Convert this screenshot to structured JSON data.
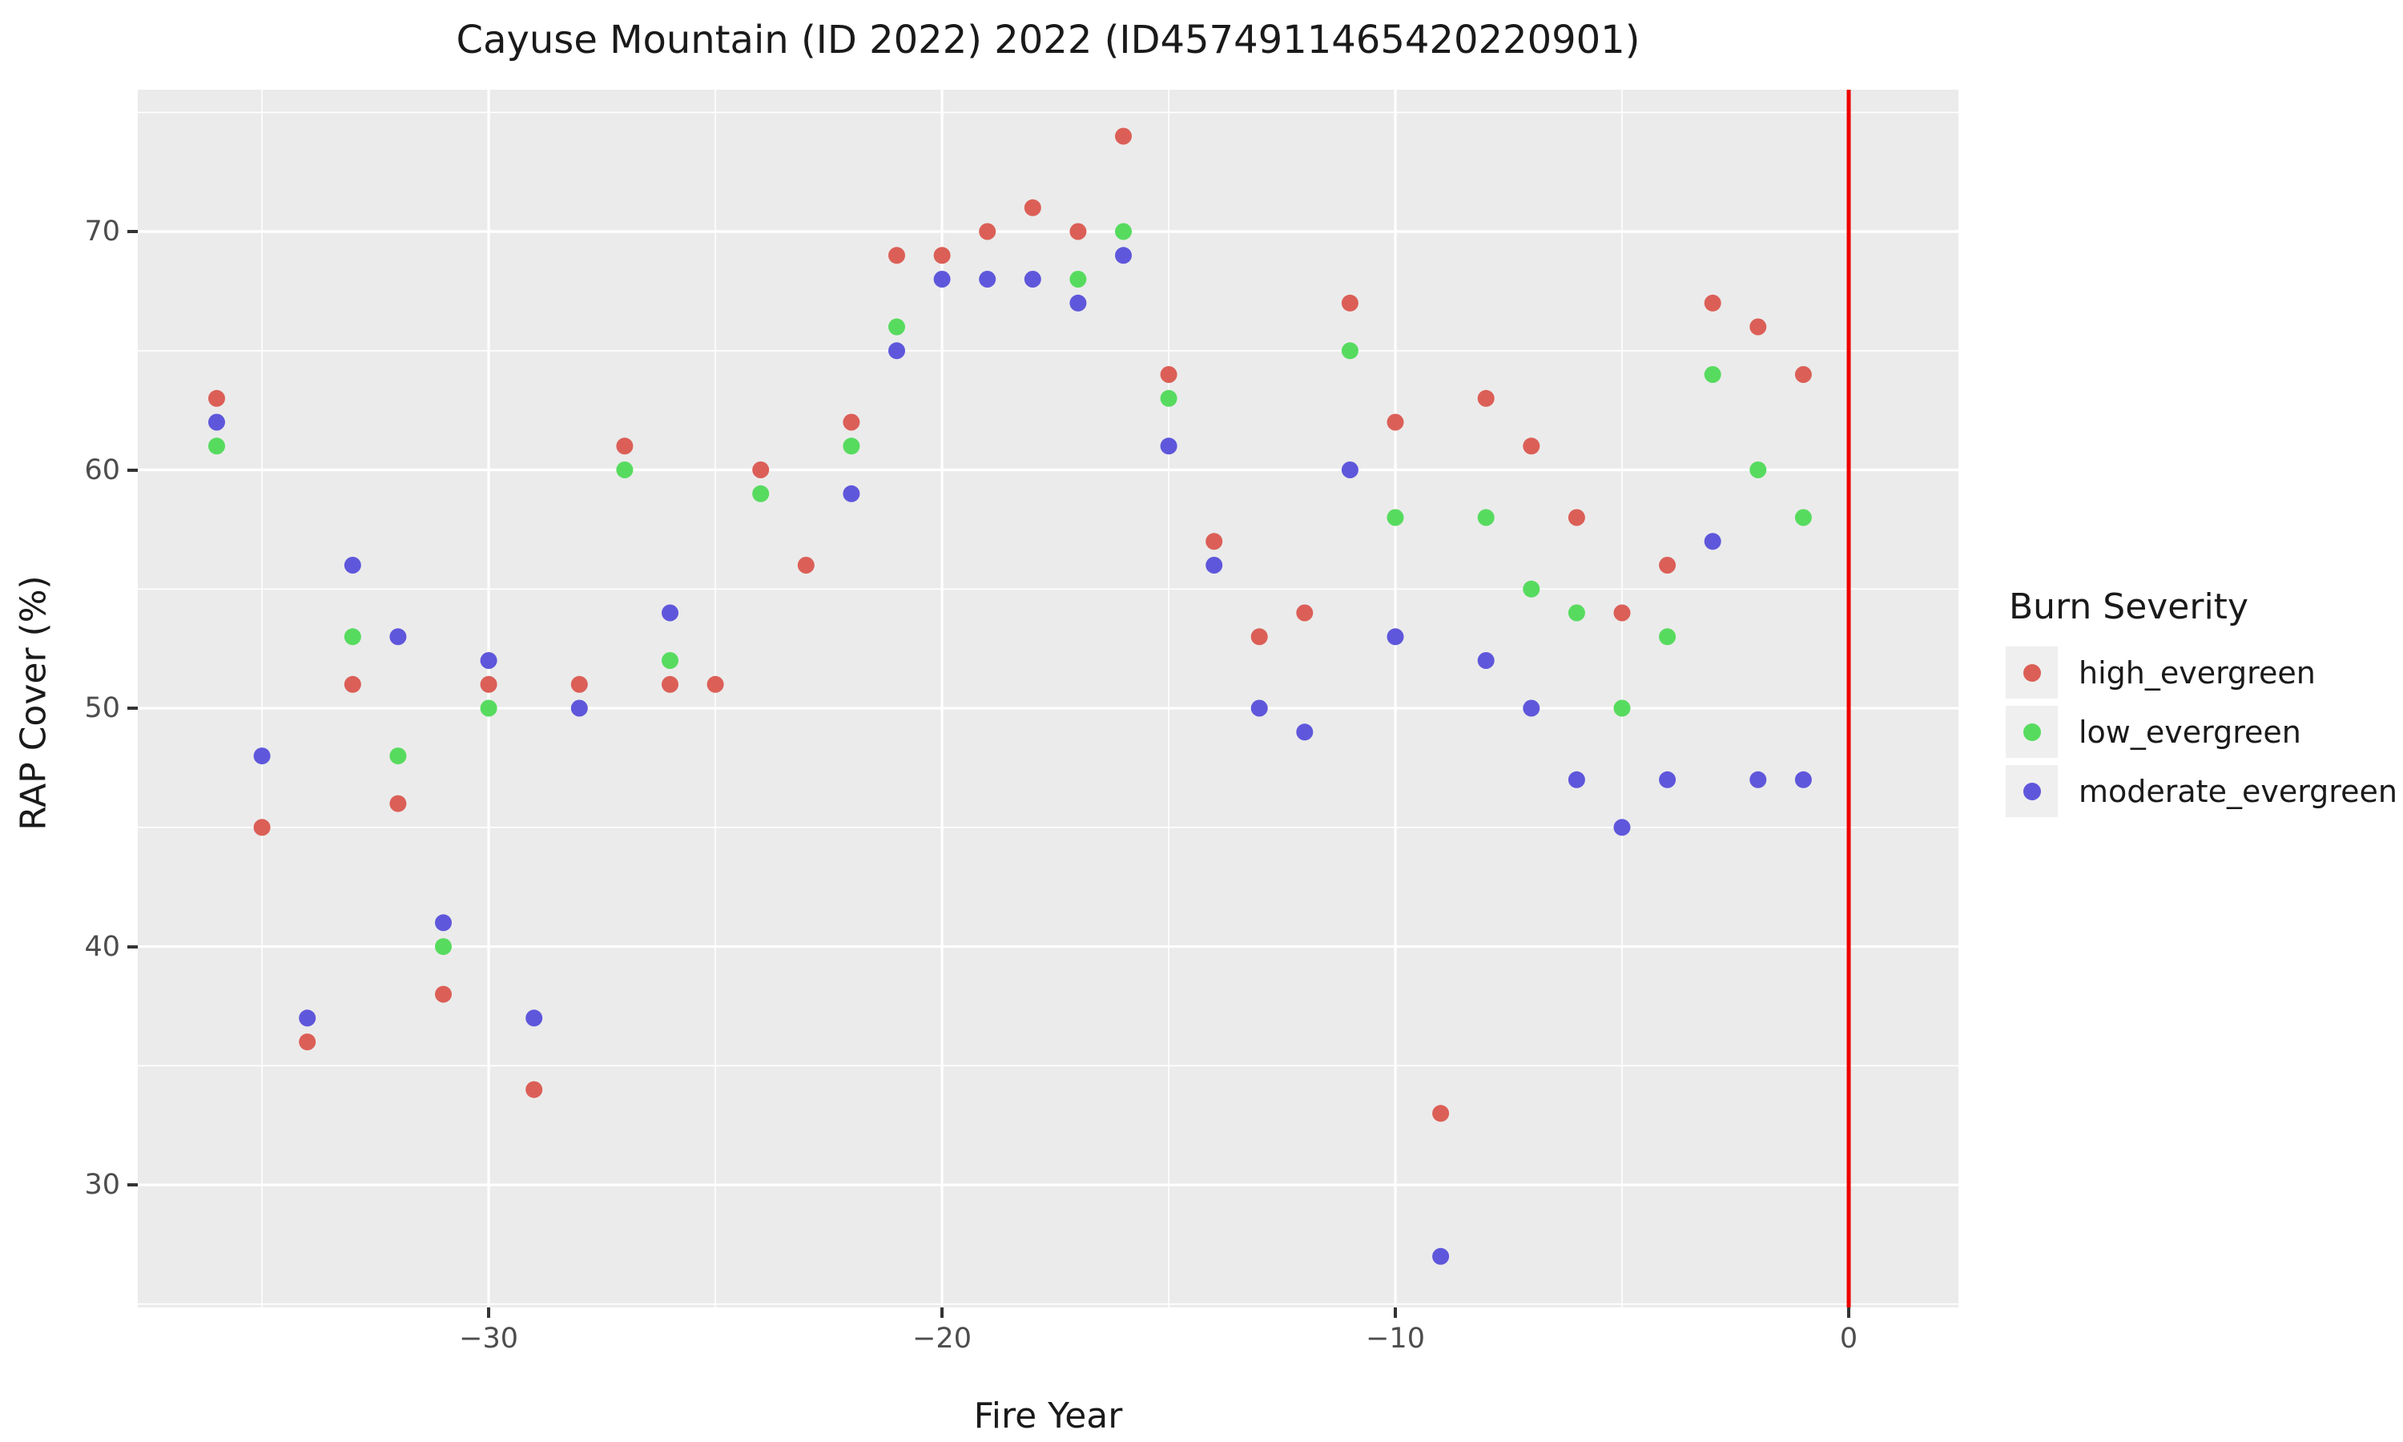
{
  "figure": {
    "background": "#ffffff",
    "panel_background": "#EBEBEB",
    "grid_color": "#ffffff",
    "tick_mark_color": "#333333",
    "tick_label_color": "#4d4d4d",
    "text_color": "#1a1a1a",
    "legend_key_background": "#EFEFEF"
  },
  "chart_data": {
    "type": "scatter",
    "title": "Cayuse Mountain (ID 2022) 2022 (ID4574911465420220901)",
    "xlabel": "Fire Year",
    "ylabel": "RAP Cover (%)",
    "xlim": [
      -37.74,
      2.42
    ],
    "ylim": [
      24.86,
      75.95
    ],
    "x_major_ticks": [
      -30,
      -20,
      -10,
      0
    ],
    "x_tick_labels": [
      "−30",
      "−20",
      "−10",
      "0"
    ],
    "x_minor_ticks": [
      -35,
      -25,
      -15,
      -5
    ],
    "y_major_ticks": [
      30,
      40,
      50,
      60,
      70
    ],
    "y_tick_labels": [
      "30",
      "40",
      "50",
      "60",
      "70"
    ],
    "y_minor_ticks": [
      25,
      35,
      45,
      55,
      65,
      75
    ],
    "grid": true,
    "vline": {
      "x": 0,
      "color": "#ee0000",
      "width": 5
    },
    "point_radius": 10.5,
    "legend": {
      "title": "Burn Severity",
      "position": "right"
    },
    "series": [
      {
        "name": "high_evergreen",
        "color": "#db5f57",
        "points": [
          [
            -36,
            63
          ],
          [
            -35,
            45
          ],
          [
            -34,
            36
          ],
          [
            -33,
            51
          ],
          [
            -32,
            46
          ],
          [
            -31,
            38
          ],
          [
            -30,
            51
          ],
          [
            -29,
            34
          ],
          [
            -28,
            51
          ],
          [
            -27,
            61
          ],
          [
            -26,
            51
          ],
          [
            -25,
            51
          ],
          [
            -24,
            60
          ],
          [
            -23,
            56
          ],
          [
            -22,
            62
          ],
          [
            -21,
            69
          ],
          [
            -20,
            69
          ],
          [
            -19,
            70
          ],
          [
            -18,
            71
          ],
          [
            -17,
            70
          ],
          [
            -16,
            74
          ],
          [
            -15,
            64
          ],
          [
            -14,
            57
          ],
          [
            -13,
            53
          ],
          [
            -12,
            54
          ],
          [
            -11,
            67
          ],
          [
            -10,
            62
          ],
          [
            -9,
            33
          ],
          [
            -8,
            63
          ],
          [
            -7,
            61
          ],
          [
            -6,
            58
          ],
          [
            -5,
            54
          ],
          [
            -4,
            56
          ],
          [
            -3,
            67
          ],
          [
            -2,
            66
          ],
          [
            -1,
            64
          ]
        ]
      },
      {
        "name": "low_evergreen",
        "color": "#57db5f",
        "points": [
          [
            -36,
            61
          ],
          [
            -33,
            53
          ],
          [
            -32,
            48
          ],
          [
            -31,
            40
          ],
          [
            -30,
            50
          ],
          [
            -27,
            60
          ],
          [
            -26,
            52
          ],
          [
            -24,
            59
          ],
          [
            -22,
            61
          ],
          [
            -21,
            66
          ],
          [
            -17,
            68
          ],
          [
            -16,
            70
          ],
          [
            -15,
            63
          ],
          [
            -11,
            65
          ],
          [
            -10,
            58
          ],
          [
            -8,
            58
          ],
          [
            -7,
            55
          ],
          [
            -6,
            54
          ],
          [
            -5,
            50
          ],
          [
            -4,
            53
          ],
          [
            -3,
            64
          ],
          [
            -2,
            60
          ],
          [
            -1,
            58
          ]
        ]
      },
      {
        "name": "moderate_evergreen",
        "color": "#5f57db",
        "points": [
          [
            -36,
            62
          ],
          [
            -35,
            48
          ],
          [
            -34,
            37
          ],
          [
            -33,
            56
          ],
          [
            -32,
            53
          ],
          [
            -31,
            41
          ],
          [
            -30,
            52
          ],
          [
            -29,
            37
          ],
          [
            -28,
            50
          ],
          [
            -26,
            54
          ],
          [
            -22,
            59
          ],
          [
            -21,
            65
          ],
          [
            -20,
            68
          ],
          [
            -19,
            68
          ],
          [
            -18,
            68
          ],
          [
            -17,
            67
          ],
          [
            -16,
            69
          ],
          [
            -15,
            61
          ],
          [
            -14,
            56
          ],
          [
            -13,
            50
          ],
          [
            -12,
            49
          ],
          [
            -11,
            60
          ],
          [
            -10,
            53
          ],
          [
            -9,
            27
          ],
          [
            -8,
            52
          ],
          [
            -7,
            50
          ],
          [
            -6,
            47
          ],
          [
            -5,
            45
          ],
          [
            -4,
            47
          ],
          [
            -3,
            57
          ],
          [
            -2,
            47
          ],
          [
            -1,
            47
          ]
        ]
      }
    ]
  }
}
